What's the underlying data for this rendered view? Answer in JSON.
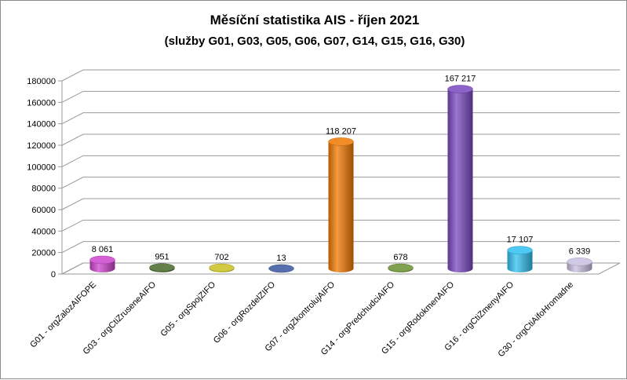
{
  "chart_data": {
    "type": "bar",
    "title": "Měsíční statistika AIS -  říjen 2021",
    "subtitle": "(služby G01, G03, G05, G06, G07, G14, G15, G16, G30)",
    "xlabel": "",
    "ylabel": "",
    "ylim": [
      0,
      180000
    ],
    "yticks": [
      "0",
      "20000",
      "40000",
      "60000",
      "80000",
      "100000",
      "120000",
      "140000",
      "160000",
      "180000"
    ],
    "grid": true,
    "legend": "none",
    "categories": [
      "G01 - orgZalozAIFOPE",
      "G03 - orgCtiZruseneAIFO",
      "G05 - orgSpojZIFO",
      "G06 - orgRozdelZIFO",
      "G07 - orgZkontrolujAIFO",
      "G14 - orgPredchudciAIFO",
      "G15 - orgRodokmenAIFO",
      "G16 - orgCtiZmenyAIFO",
      "G30 - orgCtiAifoHromadne"
    ],
    "values": [
      8061,
      951,
      702,
      13,
      118207,
      678,
      167217,
      17107,
      6339
    ],
    "data_labels": [
      "8 061",
      "951",
      "702",
      "13",
      "118 207",
      "678",
      "167 217",
      "17 107",
      "6 339"
    ],
    "colors": [
      "#cc44cc",
      "#4a6a2a",
      "#c8c020",
      "#3a55a0",
      "#f07800",
      "#6a9030",
      "#7a48c0",
      "#30c0f0",
      "#c8c0e0"
    ]
  }
}
